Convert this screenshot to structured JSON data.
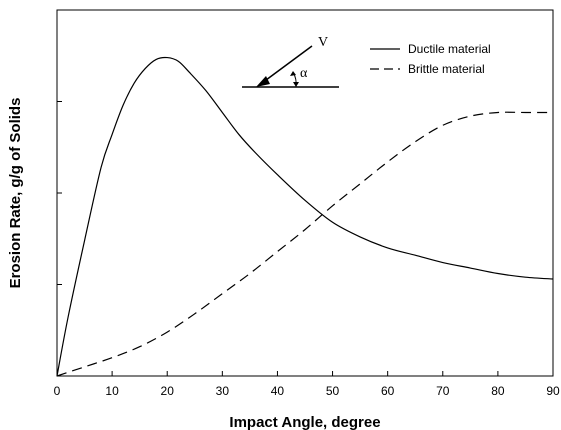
{
  "chart_data": {
    "type": "line",
    "title": "",
    "xlabel": "Impact Angle, degree",
    "ylabel": "Erosion Rate, g/g of Solids",
    "xlim": [
      0,
      90
    ],
    "ylim": [
      0,
      1
    ],
    "x_ticks": [
      "0",
      "10",
      "20",
      "30",
      "40",
      "50",
      "60",
      "70",
      "80",
      "90"
    ],
    "y_tick_labels_shown": false,
    "grid": false,
    "legend_position": "top-right",
    "series": [
      {
        "name": "Ductile material",
        "style": "solid",
        "points": [
          [
            0,
            0
          ],
          [
            2,
            0.16
          ],
          [
            5,
            0.37
          ],
          [
            8,
            0.57
          ],
          [
            10,
            0.66
          ],
          [
            12,
            0.74
          ],
          [
            14,
            0.8
          ],
          [
            16,
            0.84
          ],
          [
            18,
            0.865
          ],
          [
            20,
            0.87
          ],
          [
            22,
            0.86
          ],
          [
            24,
            0.83
          ],
          [
            27,
            0.78
          ],
          [
            30,
            0.72
          ],
          [
            33,
            0.66
          ],
          [
            36,
            0.61
          ],
          [
            40,
            0.55
          ],
          [
            45,
            0.48
          ],
          [
            50,
            0.42
          ],
          [
            55,
            0.38
          ],
          [
            60,
            0.35
          ],
          [
            65,
            0.33
          ],
          [
            70,
            0.31
          ],
          [
            75,
            0.295
          ],
          [
            80,
            0.28
          ],
          [
            85,
            0.27
          ],
          [
            90,
            0.265
          ]
        ]
      },
      {
        "name": "Brittle material",
        "style": "dashed",
        "points": [
          [
            0,
            0
          ],
          [
            5,
            0.025
          ],
          [
            10,
            0.05
          ],
          [
            15,
            0.08
          ],
          [
            20,
            0.12
          ],
          [
            25,
            0.17
          ],
          [
            30,
            0.225
          ],
          [
            35,
            0.28
          ],
          [
            40,
            0.34
          ],
          [
            45,
            0.4
          ],
          [
            50,
            0.465
          ],
          [
            55,
            0.525
          ],
          [
            60,
            0.585
          ],
          [
            65,
            0.64
          ],
          [
            70,
            0.685
          ],
          [
            75,
            0.71
          ],
          [
            80,
            0.72
          ],
          [
            85,
            0.72
          ],
          [
            90,
            0.72
          ]
        ]
      }
    ],
    "annotation": {
      "velocity_label": "V",
      "angle_label": "α"
    }
  }
}
